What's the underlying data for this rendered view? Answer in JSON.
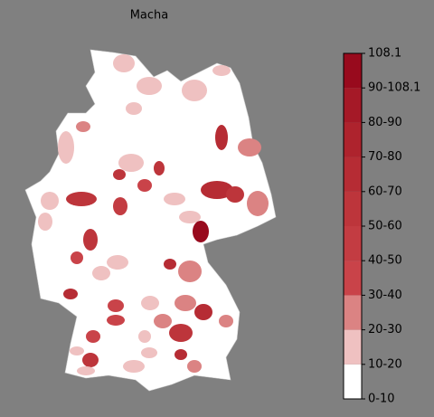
{
  "title": "Macha",
  "colorbar": {
    "labels": [
      "0-10",
      "10-20",
      "20-30",
      "30-40",
      "40-50",
      "50-60",
      "60-70",
      "70-80",
      "80-90",
      "90-108.1",
      "108.1"
    ],
    "colors": [
      "#ffffff",
      "#efc1c1",
      "#db8383",
      "#c94349",
      "#c33c42",
      "#bd353b",
      "#b62c34",
      "#ae232d",
      "#a51927",
      "#980a1d"
    ]
  }
}
